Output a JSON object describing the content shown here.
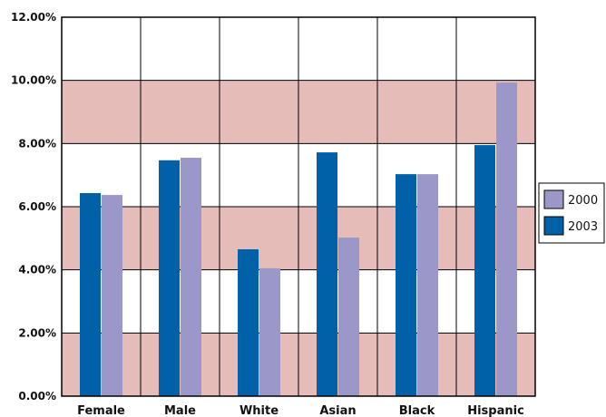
{
  "chart_data": {
    "type": "bar",
    "categories": [
      "Female",
      "Male",
      "White",
      "Asian",
      "Black",
      "Hispanic"
    ],
    "series": [
      {
        "name": "2003",
        "color": "#0060a8",
        "values": [
          6.43,
          7.47,
          4.65,
          7.72,
          7.03,
          7.95
        ]
      },
      {
        "name": "2000",
        "color": "#9b97c9",
        "values": [
          6.37,
          7.55,
          4.05,
          5.02,
          7.03,
          9.93
        ]
      }
    ],
    "yticks": [
      "0.00%",
      "2.00%",
      "4.00%",
      "6.00%",
      "8.00%",
      "10.00%",
      "12.00%"
    ],
    "ylim": [
      0,
      12
    ],
    "ytick_step": 2,
    "band_color": "#e5bcb8",
    "legend": {
      "placement": "right",
      "order": [
        "2000",
        "2003"
      ]
    },
    "grid": true,
    "title": "",
    "xlabel": "",
    "ylabel": ""
  }
}
